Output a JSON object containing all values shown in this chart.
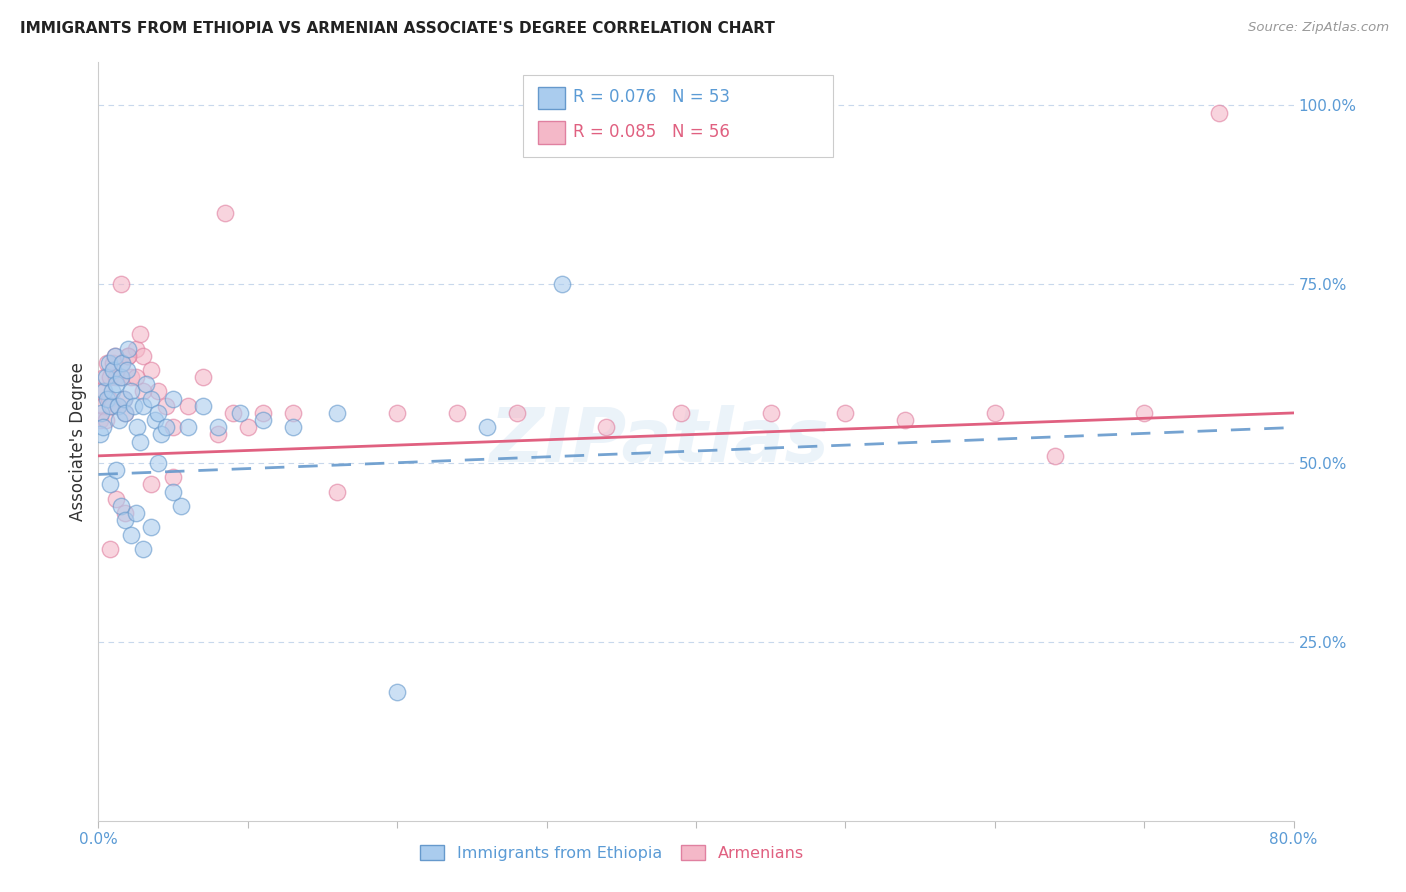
{
  "title": "IMMIGRANTS FROM ETHIOPIA VS ARMENIAN ASSOCIATE'S DEGREE CORRELATION CHART",
  "source": "Source: ZipAtlas.com",
  "ylabel": "Associate's Degree",
  "color_blue": "#aaccee",
  "color_pink": "#f4b8c8",
  "edge_blue": "#6699cc",
  "edge_pink": "#e080a0",
  "line_blue_color": "#6699cc",
  "line_pink_color": "#e06080",
  "grid_color": "#c8d8ec",
  "background": "#ffffff",
  "text_blue": "#5b9bd5",
  "text_dark": "#333333",
  "legend1_r": "0.076",
  "legend1_n": "53",
  "legend2_r": "0.085",
  "legend2_n": "56",
  "watermark": "ZIPatlas",
  "xmin": 0.0,
  "xmax": 0.8,
  "ymin": 0.0,
  "ymax": 1.06,
  "eth_intercept": 0.484,
  "eth_slope": 0.082,
  "arm_intercept": 0.51,
  "arm_slope": 0.075,
  "eth_x": [
    0.001,
    0.002,
    0.003,
    0.004,
    0.005,
    0.006,
    0.007,
    0.008,
    0.009,
    0.01,
    0.011,
    0.012,
    0.013,
    0.014,
    0.015,
    0.016,
    0.017,
    0.018,
    0.019,
    0.02,
    0.022,
    0.024,
    0.026,
    0.028,
    0.03,
    0.032,
    0.035,
    0.038,
    0.04,
    0.042,
    0.045,
    0.05,
    0.055,
    0.06,
    0.07,
    0.08,
    0.095,
    0.11,
    0.13,
    0.16,
    0.2,
    0.26,
    0.31,
    0.008,
    0.012,
    0.015,
    0.018,
    0.022,
    0.025,
    0.03,
    0.035,
    0.04,
    0.05
  ],
  "eth_y": [
    0.54,
    0.57,
    0.55,
    0.6,
    0.62,
    0.59,
    0.64,
    0.58,
    0.6,
    0.63,
    0.65,
    0.61,
    0.58,
    0.56,
    0.62,
    0.64,
    0.59,
    0.57,
    0.63,
    0.66,
    0.6,
    0.58,
    0.55,
    0.53,
    0.58,
    0.61,
    0.59,
    0.56,
    0.57,
    0.54,
    0.55,
    0.59,
    0.44,
    0.55,
    0.58,
    0.55,
    0.57,
    0.56,
    0.55,
    0.57,
    0.18,
    0.55,
    0.75,
    0.47,
    0.49,
    0.44,
    0.42,
    0.4,
    0.43,
    0.38,
    0.41,
    0.5,
    0.46
  ],
  "arm_x": [
    0.001,
    0.002,
    0.003,
    0.004,
    0.005,
    0.006,
    0.007,
    0.008,
    0.009,
    0.01,
    0.011,
    0.012,
    0.013,
    0.015,
    0.016,
    0.017,
    0.018,
    0.02,
    0.022,
    0.025,
    0.028,
    0.03,
    0.035,
    0.04,
    0.045,
    0.05,
    0.06,
    0.07,
    0.08,
    0.09,
    0.11,
    0.13,
    0.16,
    0.2,
    0.24,
    0.28,
    0.34,
    0.39,
    0.45,
    0.5,
    0.54,
    0.6,
    0.64,
    0.7,
    0.75,
    0.015,
    0.02,
    0.025,
    0.03,
    0.012,
    0.008,
    0.018,
    0.035,
    0.05,
    0.085,
    0.1
  ],
  "arm_y": [
    0.56,
    0.6,
    0.58,
    0.62,
    0.56,
    0.64,
    0.59,
    0.62,
    0.58,
    0.64,
    0.65,
    0.62,
    0.58,
    0.62,
    0.64,
    0.59,
    0.57,
    0.65,
    0.62,
    0.66,
    0.68,
    0.65,
    0.63,
    0.6,
    0.58,
    0.55,
    0.58,
    0.62,
    0.54,
    0.57,
    0.57,
    0.57,
    0.46,
    0.57,
    0.57,
    0.57,
    0.55,
    0.57,
    0.57,
    0.57,
    0.56,
    0.57,
    0.51,
    0.57,
    0.99,
    0.75,
    0.65,
    0.62,
    0.6,
    0.45,
    0.38,
    0.43,
    0.47,
    0.48,
    0.85,
    0.55
  ]
}
